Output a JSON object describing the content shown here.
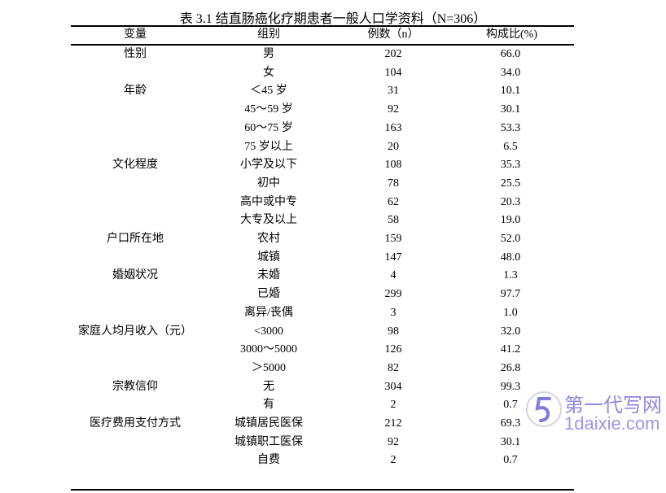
{
  "title": "表 3.1 结直肠癌化疗期患者一般人口学资料（N=306）",
  "headers": [
    "变量",
    "组别",
    "例数（n）",
    "构成比(%)"
  ],
  "rows": [
    [
      "性别",
      "男",
      "202",
      "66.0"
    ],
    [
      "",
      "女",
      "104",
      "34.0"
    ],
    [
      "年龄",
      "＜45 岁",
      "31",
      "10.1"
    ],
    [
      "",
      "45～59 岁",
      "92",
      "30.1"
    ],
    [
      "",
      "60～75 岁",
      "163",
      "53.3"
    ],
    [
      "",
      "75 岁以上",
      "20",
      "6.5"
    ],
    [
      "文化程度",
      "小学及以下",
      "108",
      "35.3"
    ],
    [
      "",
      "初中",
      "78",
      "25.5"
    ],
    [
      "",
      "高中或中专",
      "62",
      "20.3"
    ],
    [
      "",
      "大专及以上",
      "58",
      "19.0"
    ],
    [
      "户口所在地",
      "农村",
      "159",
      "52.0"
    ],
    [
      "",
      "城镇",
      "147",
      "48.0"
    ],
    [
      "婚姻状况",
      "未婚",
      "4",
      "1.3"
    ],
    [
      "",
      "已婚",
      "299",
      "97.7"
    ],
    [
      "",
      "离异/丧偶",
      "3",
      "1.0"
    ],
    [
      "家庭人均月收入（元）",
      "<3000",
      "98",
      "32.0"
    ],
    [
      "",
      "3000～5000",
      "126",
      "41.2"
    ],
    [
      "",
      "＞5000",
      "82",
      "26.8"
    ],
    [
      "宗教信仰",
      "无",
      "304",
      "99.3"
    ],
    [
      "",
      "有",
      "2",
      "0.7"
    ],
    [
      "医疗费用支付方式",
      "城镇居民医保",
      "212",
      "69.3"
    ],
    [
      "",
      "城镇职工医保",
      "92",
      "30.1"
    ],
    [
      "",
      "自费",
      "2",
      "0.7"
    ]
  ],
  "watermark": {
    "cn": "第一代写网",
    "en": "1daixie.com"
  }
}
